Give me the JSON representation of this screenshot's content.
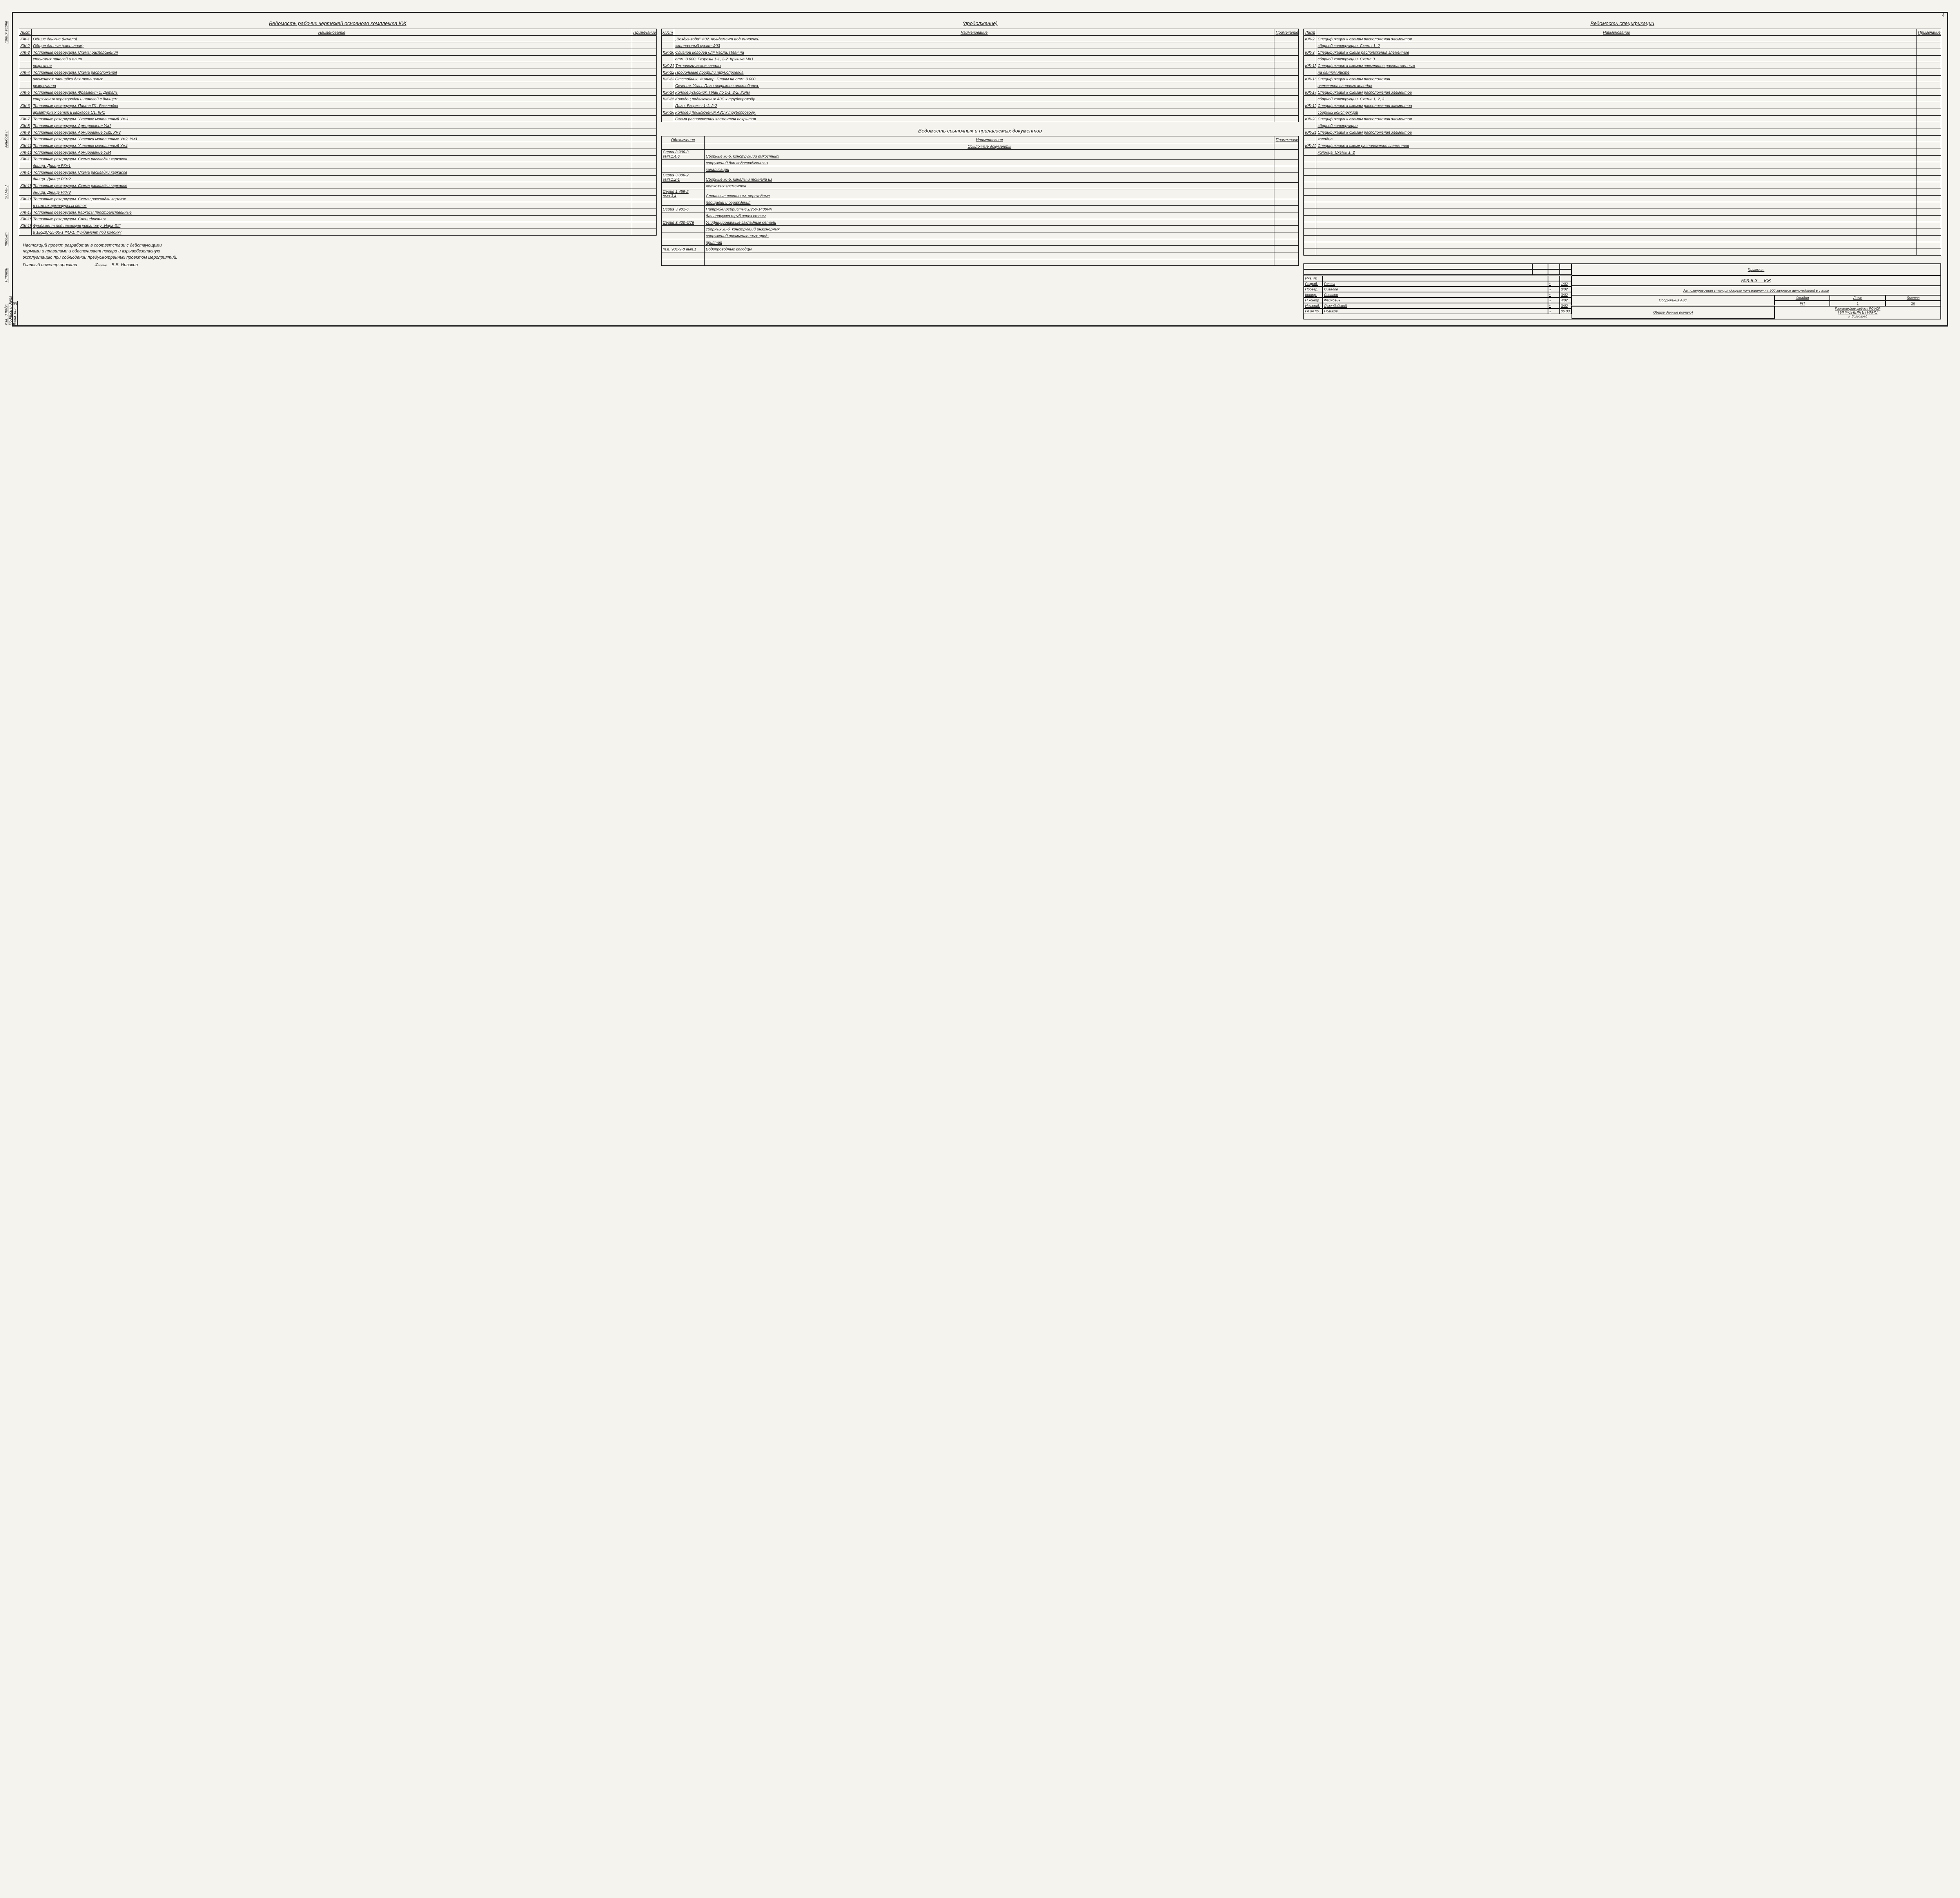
{
  "page_number": "4",
  "side_labels": [
    "Копия верна",
    "Альбом II",
    "503-6-3",
    "проект",
    "Типовой",
    "Изв. и подп. Подпись и дата Взам. инв. №"
  ],
  "titles": {
    "t1": "Ведомость рабочих чертежей основного комплекта КЖ",
    "t1_cont": "(продолжение)",
    "t2": "Ведомость ссылочных и прилагаемых документов",
    "t3": "Ведомость спецификации"
  },
  "headers": {
    "sheet": "Лист",
    "name": "Наименование",
    "note": "Примечание",
    "desig": "Обозначение"
  },
  "section_ref": "Ссылочные документы",
  "tableA": [
    [
      "КЖ-1",
      "Общие данные (начало)",
      ""
    ],
    [
      "КЖ-2",
      "Общие данные (окончание)",
      ""
    ],
    [
      "КЖ-3",
      "Топливные резервуары. Схемы расположения",
      ""
    ],
    [
      "",
      "стеновых панелей и плит",
      ""
    ],
    [
      "",
      "покрытия",
      ""
    ],
    [
      "КЖ-4",
      "Топливные резервуары. Схема расположения",
      ""
    ],
    [
      "",
      "элементов площадки для топливных",
      ""
    ],
    [
      "",
      "резервуаров",
      ""
    ],
    [
      "КЖ-5",
      "Топливные резервуары. Фрагмент 1. Деталь",
      ""
    ],
    [
      "",
      "сопряжения перегородки и панелей с днищем",
      ""
    ],
    [
      "КЖ-6",
      "Топливные резервуары. Плита П1. Раскладка",
      ""
    ],
    [
      "",
      "арматурных сеток и каркасов С1, КР1",
      ""
    ],
    [
      "КЖ-7",
      "Топливные резервуары. Участок монолитный Ум-1",
      ""
    ],
    [
      "КЖ-8",
      "Топливные резервуары. Армирование Ум1",
      ""
    ],
    [
      "КЖ-9",
      "Топливные резервуары. Армирование Ум2, Ум3",
      ""
    ],
    [
      "КЖ-10",
      "Топливные резервуары. Участки монолитные Ум2, Ум3",
      ""
    ],
    [
      "КЖ-11",
      "Топливные резервуары. Участок монолитный Ум4",
      ""
    ],
    [
      "КЖ-12",
      "Топливные резервуары. Армирование Ум4",
      ""
    ],
    [
      "КЖ-13",
      "Топливные резервуары. Схема раскладки каркасов",
      ""
    ],
    [
      "",
      "днища. Днище РКм1",
      ""
    ],
    [
      "КЖ-14",
      "Топливные резервуары. Схема раскладки каркасов",
      ""
    ],
    [
      "",
      "днища. Днище РКм2",
      ""
    ],
    [
      "КЖ-15",
      "Топливные резервуары. Схема раскладки каркасов",
      ""
    ],
    [
      "",
      "днища. Днище РКм3",
      ""
    ],
    [
      "КЖ-16",
      "Топливные резервуары. Схемы раскладки верхних",
      ""
    ],
    [
      "",
      "и нижних арматурных сеток",
      ""
    ],
    [
      "КЖ-17",
      "Топливные резервуары. Каркасы пространственные",
      ""
    ],
    [
      "КЖ-18",
      "Топливные резервуары. Спецификация",
      ""
    ],
    [
      "КЖ-19",
      "Фундамент под насосную установку „Нара-31\"",
      ""
    ],
    [
      "",
      "и 1БЗДС-25-05-1 ФО-1. Фундамент под колонку",
      ""
    ]
  ],
  "tableB": [
    [
      "",
      "„Воздух-вода\" Ф02. Фундамент под выносной",
      ""
    ],
    [
      "",
      "заправочный пункт Ф03",
      ""
    ],
    [
      "КЖ-20",
      "Сливной колодец для масла. План на",
      ""
    ],
    [
      "",
      "отм. 0.000. Разрезы 1-1, 2-2. Крышка МК1",
      ""
    ],
    [
      "КЖ-21",
      "Технологические каналы",
      ""
    ],
    [
      "КЖ-22",
      "Продольные профили трубопровода",
      ""
    ],
    [
      "КЖ-23",
      "Отстойник. Фильтр. Планы на отм. 0.000",
      ""
    ],
    [
      "",
      "Сечения. Узлы. План покрытия отстойника.",
      ""
    ],
    [
      "КЖ-24",
      "Колодец-сборник. План по 1-1, 2-2. Узлы",
      ""
    ],
    [
      "КЖ-25",
      "Колодец подключения АЗС к трубопроводу.",
      ""
    ],
    [
      "",
      "План. Разрезы 1-1, 2-2",
      ""
    ],
    [
      "КЖ-26",
      "Колодец подключения АЗС к трубопроводу.",
      ""
    ],
    [
      "",
      "Схема расположения элементов покрытия",
      ""
    ]
  ],
  "tableC": [
    [
      "Серия 3.900-3 вып.1,4,6",
      "Сборные ж.-б. конструкции емкостных",
      ""
    ],
    [
      "",
      "сооружений для водоснабжения и",
      ""
    ],
    [
      "",
      "канализации",
      ""
    ],
    [
      "Серия 3.006-2 вып.1,2-1",
      "Сборные ж.-б. каналы и тоннели из",
      ""
    ],
    [
      "",
      "лотковых элементов",
      ""
    ],
    [
      "Серия 1.459-2 вып.3,4",
      "Стальные лестницы, переходные",
      ""
    ],
    [
      "",
      "площадки и ограждения",
      ""
    ],
    [
      "Серия 3.901-6",
      "Патрубки ребристые Ду50-1400мм",
      ""
    ],
    [
      "",
      "для пропуска труб через стены",
      ""
    ],
    [
      "Серия 3.400-6/76",
      "Унифицированные закладные детали",
      ""
    ],
    [
      "",
      "сборных ж.-б. конструкций инженерных",
      ""
    ],
    [
      "",
      "сооружений промышленных пред-",
      ""
    ],
    [
      "",
      "приятий",
      ""
    ],
    [
      "т.п. 901-9-8 вып.1",
      "Водопроводные колодцы",
      ""
    ],
    [
      "",
      "",
      ""
    ],
    [
      "",
      "",
      ""
    ]
  ],
  "tableD": [
    [
      "КЖ-2",
      "Спецификация к схемам расположения элементов",
      ""
    ],
    [
      "",
      "сборной конструкции. Схемы 1, 2",
      ""
    ],
    [
      "КЖ-3",
      "Спецификация к схеме расположения элементов",
      ""
    ],
    [
      "",
      "сборной конструкции. Схема 3",
      ""
    ],
    [
      "КЖ-15",
      "Спецификация к схемам элементов расположенным",
      ""
    ],
    [
      "",
      "на данном листе",
      ""
    ],
    [
      "КЖ-16",
      "Спецификация к схемам расположения",
      ""
    ],
    [
      "",
      "элементов сливного колодца",
      ""
    ],
    [
      "КЖ-17",
      "Спецификация к схемам расположения элементов",
      ""
    ],
    [
      "",
      "сборной конструкции. Схемы 1, 2, 3",
      ""
    ],
    [
      "КЖ-19",
      "Спецификация к схемам расположения элементов",
      ""
    ],
    [
      "",
      "сборных конструкций",
      ""
    ],
    [
      "КЖ-20",
      "Спецификация к схемам расположения элементов",
      ""
    ],
    [
      "",
      "сборной конструкции",
      ""
    ],
    [
      "КЖ-21",
      "Спецификация к схемам расположения элементов",
      ""
    ],
    [
      "",
      "колодца",
      ""
    ],
    [
      "КЖ-22",
      "Спецификация к схеме расположения элементов",
      ""
    ],
    [
      "",
      "колодца. Схемы 1, 2",
      ""
    ],
    [
      "",
      "",
      ""
    ],
    [
      "",
      "",
      ""
    ],
    [
      "",
      "",
      ""
    ],
    [
      "",
      "",
      ""
    ],
    [
      "",
      "",
      ""
    ],
    [
      "",
      "",
      ""
    ],
    [
      "",
      "",
      ""
    ],
    [
      "",
      "",
      ""
    ],
    [
      "",
      "",
      ""
    ],
    [
      "",
      "",
      ""
    ],
    [
      "",
      "",
      ""
    ],
    [
      "",
      "",
      ""
    ],
    [
      "",
      "",
      ""
    ],
    [
      "",
      "",
      ""
    ],
    [
      "",
      "",
      ""
    ]
  ],
  "footer": {
    "text": "Настоящий проект разработан в соответствии с действующими нормами и правилами и обеспечивает пожаро и взрывобезопасную эксплуатацию при соблюдении предусмотренных проектом мероприятий.",
    "role": "Главный инженер проекта",
    "name": "В.В. Новиков"
  },
  "title_block": {
    "privjazal": "Привязал:",
    "inv": "Инв. №",
    "roles": [
      [
        "Разраб.",
        "Голова",
        "",
        "1/02"
      ],
      [
        "Провер.",
        "Сивалов",
        "",
        "3/02"
      ],
      [
        "Контр.",
        "Сивалов",
        "",
        "3/02"
      ],
      [
        "Н.контр",
        "Файнович",
        "",
        "4/02"
      ],
      [
        "Нач.отд.",
        "Лузенбайский",
        "",
        "3/02"
      ],
      [
        "Гл.ин.пр",
        "Новиков",
        "",
        "06.83"
      ]
    ],
    "code": "503-6-3",
    "mark": "КЖ",
    "project": "Автозаправочная станция общего пользования на 500 заправок автомобилей в сутки",
    "part1": "Сооружения АЗС",
    "stage_h": "Стадия",
    "sheet_h": "Лист",
    "sheets_h": "Листов",
    "stage": "РП",
    "sheet": "1",
    "sheets": "26",
    "part2": "Общие данные (начало)",
    "org1": "Госкомнефтепродукт РСФСР",
    "org2": "ГИПРОНЕФТЕТРАНС",
    "org3": "г. Волгоград"
  }
}
